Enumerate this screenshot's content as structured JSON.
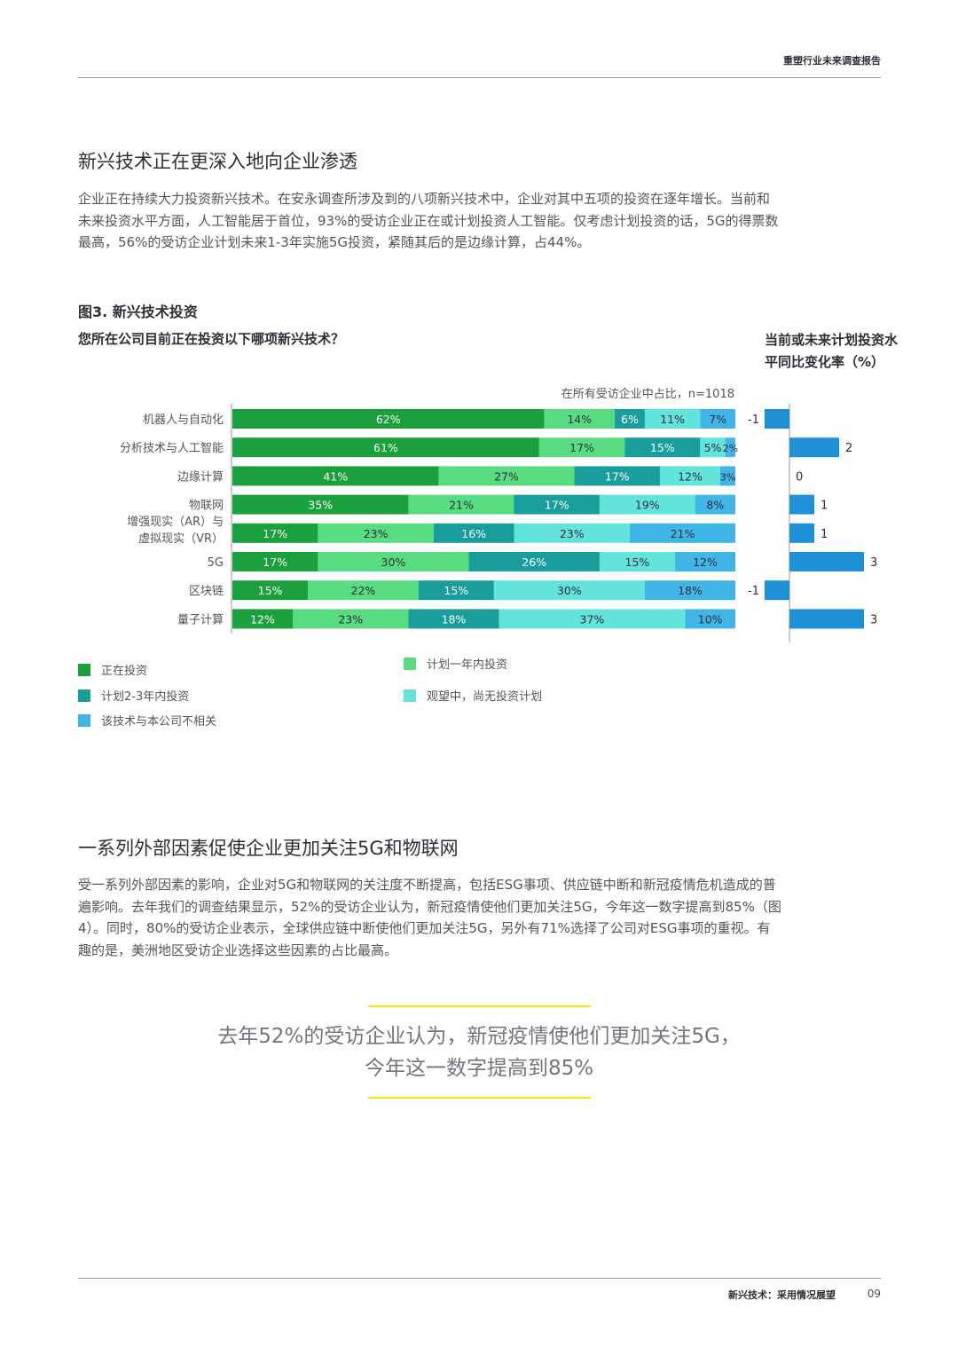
{
  "header": {
    "report_title": "重塑行业未来调查报告"
  },
  "section1": {
    "heading": "新兴技术正在更深入地向企业渗透",
    "paragraph_lines": [
      "企业正在持续大力投资新兴技术。在安永调查所涉及到的八项新兴技术中，企业对其中五项的投资在逐年增长。当前和",
      "未来投资水平方面，人工智能居于首位，93%的受访企业正在或计划投资人工智能。仅考虑计划投资的话，5G的得票数",
      "最高，56%的受访企业计划未来1-3年实施5G投资，紧随其后的是边缘计算，占44%。"
    ]
  },
  "figure": {
    "title": "图3. 新兴技术投资",
    "question": "您所在公司目前正在投资以下哪项新兴技术？",
    "right_title_lines": [
      "当前或未来计划投资水",
      "平同比变化率（%）"
    ],
    "note": "在所有受访企业中占比，n=1018"
  },
  "chart_data": {
    "type": "bar",
    "orientation": "horizontal",
    "stacked": true,
    "categories": [
      [
        "机器人与自动化"
      ],
      [
        "分析技术与人工智能"
      ],
      [
        "边缘计算"
      ],
      [
        "物联网"
      ],
      [
        "增强现实（AR）与",
        "虚拟现实（VR）"
      ],
      [
        "5G"
      ],
      [
        "区块链"
      ],
      [
        "量子计算"
      ]
    ],
    "series": [
      {
        "name": "正在投资",
        "color": "#1aa03c",
        "text_color": "#ffffff",
        "values": [
          62,
          61,
          41,
          35,
          17,
          17,
          15,
          12
        ]
      },
      {
        "name": "计划一年内投资",
        "color": "#57dc81",
        "text_color": "#2e2e38",
        "values": [
          14,
          17,
          27,
          21,
          23,
          30,
          22,
          23
        ]
      },
      {
        "name": "计划2-3年内投资",
        "color": "#1a9d9d",
        "text_color": "#ffffff",
        "values": [
          6,
          15,
          17,
          17,
          16,
          26,
          15,
          18
        ]
      },
      {
        "name": "观望中，尚无投资计划",
        "color": "#62e3dc",
        "text_color": "#2e2e38",
        "values": [
          11,
          5,
          12,
          19,
          23,
          15,
          30,
          37
        ]
      },
      {
        "name": "该技术与本公司不相关",
        "color": "#42b5e8",
        "text_color": "#2e2e38",
        "values": [
          7,
          2,
          3,
          8,
          21,
          12,
          18,
          10
        ]
      }
    ],
    "value_suffix": "%",
    "xlim": [
      0,
      100
    ],
    "yoy_change": {
      "values": [
        -1,
        2,
        0,
        1,
        1,
        3,
        -1,
        3
      ],
      "color": "#1f8fd8"
    },
    "legend": {
      "position": "bottom-left"
    }
  },
  "section2": {
    "heading": "一系列外部因素促使企业更加关注5G和物联网",
    "paragraph_lines": [
      "受一系列外部因素的影响，企业对5G和物联网的关注度不断提高，包括ESG事项、供应链中断和新冠疫情危机造成的普",
      "遍影响。去年我们的调查结果显示，52%的受访企业认为，新冠疫情使他们更加关注5G，今年这一数字提高到85%（图",
      "4）。同时，80%的受访企业表示，全球供应链中断使他们更加关注5G，另外有71%选择了公司对ESG事项的重视。有",
      "趣的是，美洲地区受访企业选择这些因素的占比最高。"
    ]
  },
  "quote": {
    "lines": [
      "去年52%的受访企业认为，新冠疫情使他们更加关注5G，",
      "今年这一数字提高到85%"
    ],
    "accent_color": "#ffe600"
  },
  "footer": {
    "label": "新兴技术：采用情况展望",
    "page": "09"
  }
}
